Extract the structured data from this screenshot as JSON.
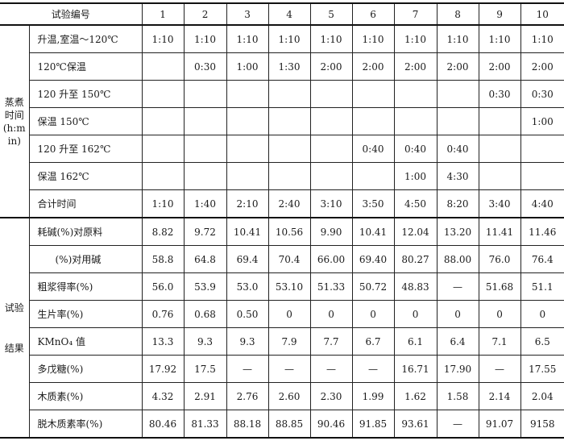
{
  "header": {
    "title": "试验编号",
    "trials": [
      "1",
      "2",
      "3",
      "4",
      "5",
      "6",
      "7",
      "8",
      "9",
      "10"
    ]
  },
  "sections": [
    {
      "group_label": "蒸煮时间 (h:min)",
      "rows": [
        {
          "label": "升温,室温～120℃",
          "values": [
            "1:10",
            "1:10",
            "1:10",
            "1:10",
            "1:10",
            "1:10",
            "1:10",
            "1:10",
            "1:10",
            "1:10"
          ]
        },
        {
          "label": "120℃保温",
          "values": [
            "",
            "0:30",
            "1:00",
            "1:30",
            "2:00",
            "2:00",
            "2:00",
            "2:00",
            "2:00",
            "2:00"
          ]
        },
        {
          "label": "120 升至 150℃",
          "values": [
            "",
            "",
            "",
            "",
            "",
            "",
            "",
            "",
            "0:30",
            "0:30"
          ]
        },
        {
          "label": "保温 150℃",
          "values": [
            "",
            "",
            "",
            "",
            "",
            "",
            "",
            "",
            "",
            "1:00"
          ]
        },
        {
          "label": "120 升至 162℃",
          "values": [
            "",
            "",
            "",
            "",
            "",
            "0:40",
            "0:40",
            "0:40",
            "",
            ""
          ]
        },
        {
          "label": "保温 162℃",
          "values": [
            "",
            "",
            "",
            "",
            "",
            "",
            "1:00",
            "4:30",
            "",
            ""
          ]
        },
        {
          "label": "合计时间",
          "values": [
            "1:10",
            "1:40",
            "2:10",
            "2:40",
            "3:10",
            "3:50",
            "4:50",
            "8:20",
            "3:40",
            "4:40"
          ]
        }
      ]
    },
    {
      "group_label": "试验结果",
      "rows": [
        {
          "label": "耗碱(%)对原料",
          "values": [
            "8.82",
            "9.72",
            "10.41",
            "10.56",
            "9.90",
            "10.41",
            "12.04",
            "13.20",
            "11.41",
            "11.46"
          ]
        },
        {
          "label": "(%)对用碱",
          "indent": true,
          "values": [
            "58.8",
            "64.8",
            "69.4",
            "70.4",
            "66.00",
            "69.40",
            "80.27",
            "88.00",
            "76.0",
            "76.4"
          ]
        },
        {
          "label": "粗浆得率(%)",
          "values": [
            "56.0",
            "53.9",
            "53.0",
            "53.10",
            "51.33",
            "50.72",
            "48.83",
            "—",
            "51.68",
            "51.1"
          ]
        },
        {
          "label": "生片率(%)",
          "values": [
            "0.76",
            "0.68",
            "0.50",
            "0",
            "0",
            "0",
            "0",
            "0",
            "0",
            "0"
          ]
        },
        {
          "label": "KMnO₄ 值",
          "values": [
            "13.3",
            "9.3",
            "9.3",
            "7.9",
            "7.7",
            "6.7",
            "6.1",
            "6.4",
            "7.1",
            "6.5"
          ]
        },
        {
          "label": "多戊糖(%)",
          "values": [
            "17.92",
            "17.5",
            "—",
            "—",
            "—",
            "—",
            "16.71",
            "17.90",
            "—",
            "17.55"
          ]
        },
        {
          "label": "木质素(%)",
          "values": [
            "4.32",
            "2.91",
            "2.76",
            "2.60",
            "2.30",
            "1.99",
            "1.62",
            "1.58",
            "2.14",
            "2.04"
          ]
        },
        {
          "label": "脱木质素率(%)",
          "values": [
            "80.46",
            "81.33",
            "88.18",
            "88.85",
            "90.46",
            "91.85",
            "93.61",
            "—",
            "91.07",
            "9158"
          ]
        }
      ]
    }
  ]
}
